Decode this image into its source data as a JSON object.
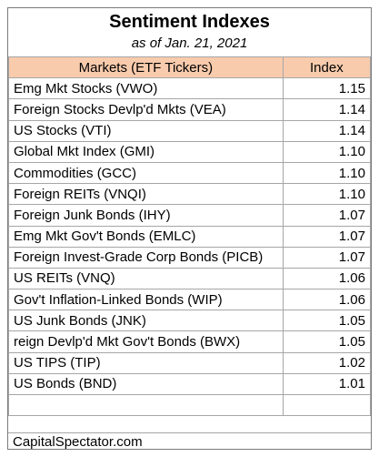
{
  "title": "Sentiment Indexes",
  "subtitle": "as of Jan. 21, 2021",
  "columns": {
    "market": "Markets (ETF Tickers)",
    "index": "Index"
  },
  "rows": [
    {
      "market": "Emg Mkt Stocks (VWO)",
      "index": "1.15"
    },
    {
      "market": "Foreign Stocks Devlp'd Mkts (VEA)",
      "index": "1.14"
    },
    {
      "market": "US Stocks (VTI)",
      "index": "1.14"
    },
    {
      "market": "Global Mkt Index (GMI)",
      "index": "1.10"
    },
    {
      "market": "Commodities (GCC)",
      "index": "1.10"
    },
    {
      "market": "Foreign REITs (VNQI)",
      "index": "1.10"
    },
    {
      "market": "Foreign Junk Bonds (IHY)",
      "index": "1.07"
    },
    {
      "market": "Emg Mkt Gov't Bonds (EMLC)",
      "index": "1.07"
    },
    {
      "market": "Foreign Invest-Grade Corp Bonds (PICB)",
      "index": "1.07"
    },
    {
      "market": "US REITs (VNQ)",
      "index": "1.06"
    },
    {
      "market": "Gov't Inflation-Linked Bonds (WIP)",
      "index": "1.06"
    },
    {
      "market": "US Junk Bonds (JNK)",
      "index": "1.05"
    },
    {
      "market": "reign Devlp'd Mkt Gov't Bonds (BWX)",
      "index": "1.05"
    },
    {
      "market": "US TIPS (TIP)",
      "index": "1.02"
    },
    {
      "market": "US Bonds (BND)",
      "index": "1.01"
    }
  ],
  "footer": "CapitalSpectator.com"
}
